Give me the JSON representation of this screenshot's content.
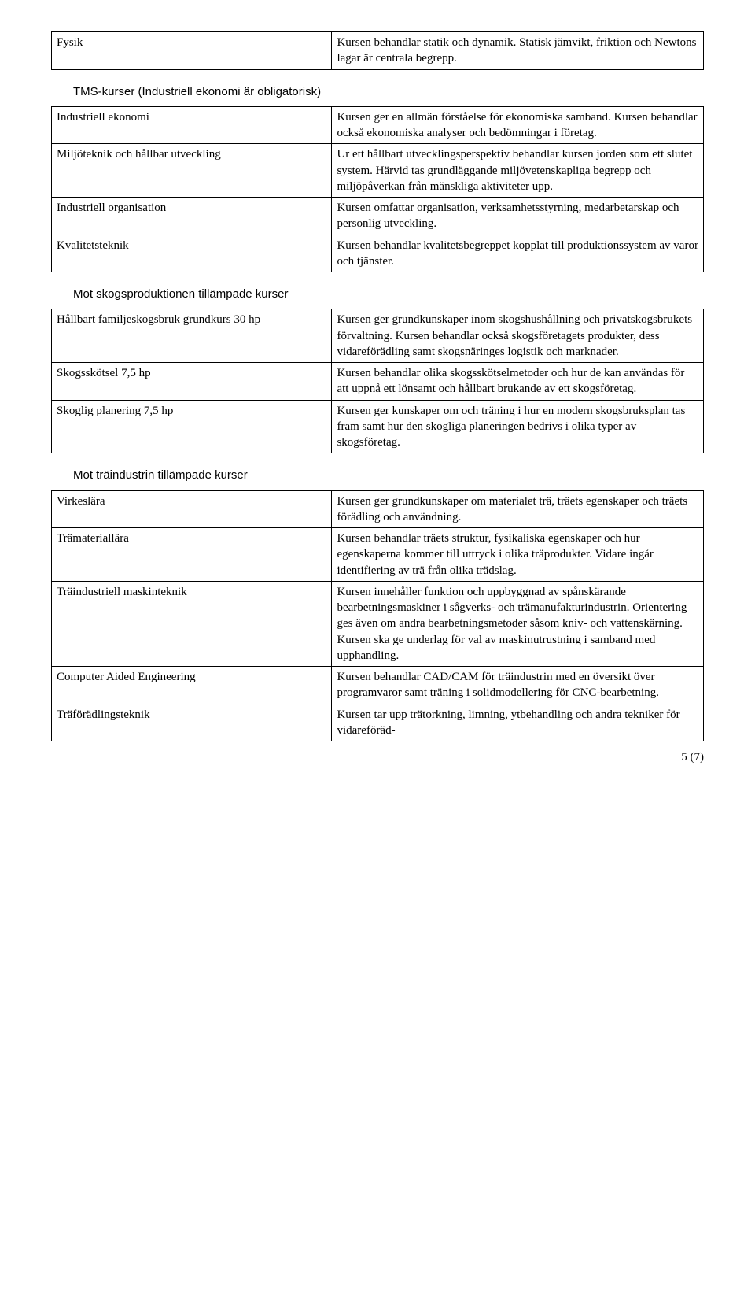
{
  "tables": {
    "table1": {
      "rows": [
        {
          "c1": "Fysik",
          "c2": "Kursen behandlar statik och dynamik. Statisk jämvikt, friktion och Newtons lagar är centrala begrepp."
        }
      ]
    },
    "section1": {
      "heading": "TMS-kurser (Industriell ekonomi är obligatorisk)"
    },
    "table2": {
      "rows": [
        {
          "c1": "Industriell ekonomi",
          "c2": "Kursen ger en allmän förståelse för ekonomiska samband. Kursen behandlar också ekonomiska analyser och bedömningar i företag."
        },
        {
          "c1": "Miljöteknik och hållbar utveckling",
          "c2": "Ur ett hållbart utvecklingsperspektiv behandlar kursen jorden som ett slutet system. Härvid tas grundläggande miljövetenskapliga begrepp och miljöpåverkan från mänskliga aktiviteter upp."
        },
        {
          "c1": "Industriell organisation",
          "c2": "Kursen omfattar organisation, verksamhetsstyrning, medarbetarskap och personlig utveckling."
        },
        {
          "c1": "Kvalitetsteknik",
          "c2": "Kursen behandlar kvalitetsbegreppet kopplat till produktionssystem av varor och tjänster."
        }
      ]
    },
    "section2": {
      "heading": "Mot skogsproduktionen tillämpade kurser"
    },
    "table3": {
      "rows": [
        {
          "c1": "Hållbart familjeskogsbruk grundkurs 30 hp",
          "c2": "Kursen ger grundkunskaper inom skogshushållning och privatskogsbrukets förvaltning. Kursen behandlar också skogsföretagets produkter, dess vidareförädling samt skogsnäringes logistik och marknader."
        },
        {
          "c1": "Skogsskötsel 7,5 hp",
          "c2": "Kursen behandlar olika skogsskötselmetoder och hur de kan användas för att uppnå ett lönsamt och hållbart brukande av ett skogsföretag."
        },
        {
          "c1": "Skoglig planering 7,5 hp",
          "c2": "Kursen ger kunskaper om och träning i hur en modern skogsbruksplan tas fram samt hur den skogliga planeringen bedrivs i olika typer av skogsföretag."
        }
      ]
    },
    "section3": {
      "heading": "Mot träindustrin tillämpade kurser"
    },
    "table4": {
      "rows": [
        {
          "c1": "Virkeslära",
          "c2": "Kursen ger grundkunskaper om materialet trä, träets egenskaper och träets förädling och användning."
        },
        {
          "c1": "Trämateriallära",
          "c2": "Kursen behandlar träets struktur, fysikaliska egenskaper och hur egenskaperna kommer till uttryck i olika träprodukter. Vidare ingår identifiering av trä från olika trädslag."
        },
        {
          "c1": "Träindustriell maskinteknik",
          "c2": "Kursen innehåller funktion och uppbyggnad av spånskärande bearbetningsmaskiner i sågverks- och trämanufakturindustrin. Orientering ges även om andra bearbetningsmetoder såsom kniv- och vattenskärning. Kursen ska ge underlag för val av maskinutrustning i samband med upphandling."
        },
        {
          "c1": "Computer Aided Engineering",
          "c2": "Kursen behandlar CAD/CAM för träindustrin med en översikt över programvaror samt träning i solidmodellering för CNC-bearbetning."
        },
        {
          "c1": "Träförädlingsteknik",
          "c2": "Kursen tar upp trätorkning, limning, ytbehandling och andra tekniker för vidareföräd-"
        }
      ]
    }
  },
  "footer": "5 (7)"
}
